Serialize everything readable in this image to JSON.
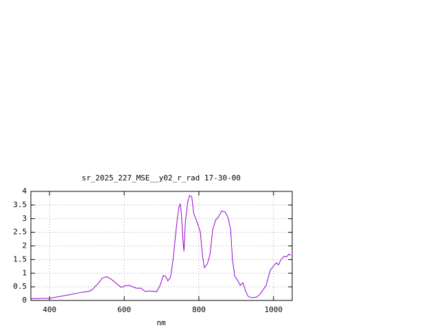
{
  "chart_data": {
    "type": "line",
    "title": "sr_2025_227_MSE__y02_r_rad 17-30-00",
    "xlabel": "nm",
    "x": [
      350,
      400,
      450,
      486,
      504,
      513,
      532,
      541,
      554,
      568,
      581,
      592,
      605,
      614,
      632,
      645,
      656,
      669,
      687,
      696,
      705,
      711,
      717,
      724,
      731,
      739,
      746,
      750,
      753,
      757,
      760,
      764,
      770,
      775,
      781,
      786,
      797,
      804,
      810,
      815,
      823,
      830,
      837,
      845,
      852,
      861,
      870,
      878,
      885,
      890,
      896,
      903,
      911,
      918,
      925,
      932,
      940,
      955,
      965,
      980,
      991,
      1002,
      1008,
      1013,
      1020,
      1028,
      1035,
      1041,
      1046
    ],
    "y": [
      0.07,
      0.08,
      0.2,
      0.3,
      0.33,
      0.38,
      0.65,
      0.82,
      0.87,
      0.75,
      0.6,
      0.48,
      0.55,
      0.55,
      0.45,
      0.45,
      0.33,
      0.35,
      0.32,
      0.55,
      0.92,
      0.88,
      0.72,
      0.85,
      1.5,
      2.6,
      3.4,
      3.55,
      3.2,
      2.3,
      1.8,
      2.9,
      3.6,
      3.85,
      3.8,
      3.2,
      2.8,
      2.5,
      1.6,
      1.2,
      1.35,
      1.7,
      2.6,
      2.95,
      3.05,
      3.28,
      3.25,
      3.05,
      2.6,
      1.5,
      0.9,
      0.75,
      0.55,
      0.65,
      0.35,
      0.15,
      0.1,
      0.12,
      0.25,
      0.55,
      1.1,
      1.3,
      1.38,
      1.3,
      1.5,
      1.62,
      1.6,
      1.7,
      1.65
    ],
    "color": "#9400d3",
    "xlim": [
      350,
      1050
    ],
    "xticks": [
      400,
      600,
      800,
      1000
    ],
    "ylim": [
      0,
      4
    ],
    "yticks": [
      0,
      0.5,
      1,
      1.5,
      2,
      2.5,
      3,
      3.5,
      4
    ],
    "grid": true
  }
}
